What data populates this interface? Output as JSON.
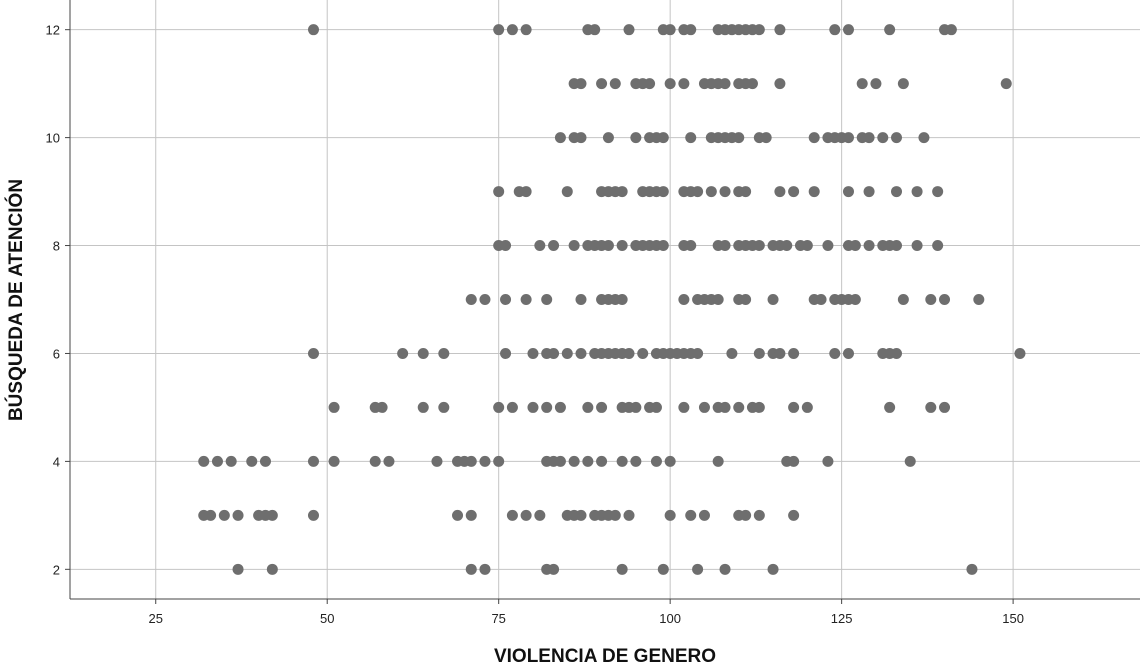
{
  "chart_data": {
    "type": "scatter",
    "xlabel": "VIOLENCIA DE GENERO",
    "ylabel": "BÚSQUEDA DE ATENCIÓN",
    "xlim": [
      12.5,
      168.5
    ],
    "ylim": [
      1.45,
      12.55
    ],
    "x_ticks": [
      25,
      50,
      75,
      100,
      125,
      150
    ],
    "y_ticks": [
      2,
      4,
      6,
      8,
      10,
      12
    ],
    "grid": true,
    "marker_color": "#6e6e6e",
    "grid_color": "#c4c4c4",
    "series": [
      {
        "points": [
          [
            48,
            12
          ],
          [
            75,
            12
          ],
          [
            77,
            12
          ],
          [
            79,
            12
          ],
          [
            88,
            12
          ],
          [
            89,
            12
          ],
          [
            94,
            12
          ],
          [
            99,
            12
          ],
          [
            100,
            12
          ],
          [
            102,
            12
          ],
          [
            103,
            12
          ],
          [
            107,
            12
          ],
          [
            108,
            12
          ],
          [
            109,
            12
          ],
          [
            110,
            12
          ],
          [
            111,
            12
          ],
          [
            112,
            12
          ],
          [
            113,
            12
          ],
          [
            116,
            12
          ],
          [
            124,
            12
          ],
          [
            126,
            12
          ],
          [
            132,
            12
          ],
          [
            140,
            12
          ],
          [
            141,
            12
          ],
          [
            86,
            11
          ],
          [
            87,
            11
          ],
          [
            90,
            11
          ],
          [
            92,
            11
          ],
          [
            95,
            11
          ],
          [
            96,
            11
          ],
          [
            97,
            11
          ],
          [
            100,
            11
          ],
          [
            102,
            11
          ],
          [
            105,
            11
          ],
          [
            106,
            11
          ],
          [
            107,
            11
          ],
          [
            108,
            11
          ],
          [
            110,
            11
          ],
          [
            111,
            11
          ],
          [
            112,
            11
          ],
          [
            116,
            11
          ],
          [
            128,
            11
          ],
          [
            130,
            11
          ],
          [
            134,
            11
          ],
          [
            149,
            11
          ],
          [
            84,
            10
          ],
          [
            86,
            10
          ],
          [
            87,
            10
          ],
          [
            91,
            10
          ],
          [
            95,
            10
          ],
          [
            97,
            10
          ],
          [
            98,
            10
          ],
          [
            99,
            10
          ],
          [
            103,
            10
          ],
          [
            106,
            10
          ],
          [
            107,
            10
          ],
          [
            108,
            10
          ],
          [
            109,
            10
          ],
          [
            110,
            10
          ],
          [
            113,
            10
          ],
          [
            114,
            10
          ],
          [
            121,
            10
          ],
          [
            123,
            10
          ],
          [
            124,
            10
          ],
          [
            125,
            10
          ],
          [
            126,
            10
          ],
          [
            128,
            10
          ],
          [
            129,
            10
          ],
          [
            131,
            10
          ],
          [
            133,
            10
          ],
          [
            137,
            10
          ],
          [
            75,
            9
          ],
          [
            78,
            9
          ],
          [
            79,
            9
          ],
          [
            85,
            9
          ],
          [
            90,
            9
          ],
          [
            91,
            9
          ],
          [
            92,
            9
          ],
          [
            93,
            9
          ],
          [
            96,
            9
          ],
          [
            97,
            9
          ],
          [
            98,
            9
          ],
          [
            99,
            9
          ],
          [
            102,
            9
          ],
          [
            103,
            9
          ],
          [
            104,
            9
          ],
          [
            106,
            9
          ],
          [
            108,
            9
          ],
          [
            110,
            9
          ],
          [
            111,
            9
          ],
          [
            116,
            9
          ],
          [
            118,
            9
          ],
          [
            121,
            9
          ],
          [
            126,
            9
          ],
          [
            129,
            9
          ],
          [
            133,
            9
          ],
          [
            136,
            9
          ],
          [
            139,
            9
          ],
          [
            75,
            8
          ],
          [
            76,
            8
          ],
          [
            81,
            8
          ],
          [
            83,
            8
          ],
          [
            86,
            8
          ],
          [
            88,
            8
          ],
          [
            89,
            8
          ],
          [
            90,
            8
          ],
          [
            91,
            8
          ],
          [
            93,
            8
          ],
          [
            95,
            8
          ],
          [
            96,
            8
          ],
          [
            97,
            8
          ],
          [
            98,
            8
          ],
          [
            99,
            8
          ],
          [
            102,
            8
          ],
          [
            103,
            8
          ],
          [
            107,
            8
          ],
          [
            108,
            8
          ],
          [
            110,
            8
          ],
          [
            111,
            8
          ],
          [
            112,
            8
          ],
          [
            113,
            8
          ],
          [
            115,
            8
          ],
          [
            116,
            8
          ],
          [
            117,
            8
          ],
          [
            119,
            8
          ],
          [
            120,
            8
          ],
          [
            123,
            8
          ],
          [
            126,
            8
          ],
          [
            127,
            8
          ],
          [
            129,
            8
          ],
          [
            131,
            8
          ],
          [
            132,
            8
          ],
          [
            133,
            8
          ],
          [
            136,
            8
          ],
          [
            139,
            8
          ],
          [
            71,
            7
          ],
          [
            73,
            7
          ],
          [
            76,
            7
          ],
          [
            79,
            7
          ],
          [
            82,
            7
          ],
          [
            87,
            7
          ],
          [
            90,
            7
          ],
          [
            91,
            7
          ],
          [
            92,
            7
          ],
          [
            93,
            7
          ],
          [
            102,
            7
          ],
          [
            104,
            7
          ],
          [
            105,
            7
          ],
          [
            106,
            7
          ],
          [
            107,
            7
          ],
          [
            110,
            7
          ],
          [
            111,
            7
          ],
          [
            115,
            7
          ],
          [
            121,
            7
          ],
          [
            122,
            7
          ],
          [
            124,
            7
          ],
          [
            125,
            7
          ],
          [
            126,
            7
          ],
          [
            127,
            7
          ],
          [
            134,
            7
          ],
          [
            138,
            7
          ],
          [
            140,
            7
          ],
          [
            145,
            7
          ],
          [
            48,
            6
          ],
          [
            61,
            6
          ],
          [
            64,
            6
          ],
          [
            67,
            6
          ],
          [
            76,
            6
          ],
          [
            80,
            6
          ],
          [
            82,
            6
          ],
          [
            83,
            6
          ],
          [
            85,
            6
          ],
          [
            87,
            6
          ],
          [
            89,
            6
          ],
          [
            90,
            6
          ],
          [
            91,
            6
          ],
          [
            92,
            6
          ],
          [
            93,
            6
          ],
          [
            94,
            6
          ],
          [
            96,
            6
          ],
          [
            98,
            6
          ],
          [
            99,
            6
          ],
          [
            100,
            6
          ],
          [
            101,
            6
          ],
          [
            102,
            6
          ],
          [
            103,
            6
          ],
          [
            104,
            6
          ],
          [
            109,
            6
          ],
          [
            113,
            6
          ],
          [
            115,
            6
          ],
          [
            116,
            6
          ],
          [
            118,
            6
          ],
          [
            124,
            6
          ],
          [
            126,
            6
          ],
          [
            131,
            6
          ],
          [
            132,
            6
          ],
          [
            133,
            6
          ],
          [
            151,
            6
          ],
          [
            51,
            5
          ],
          [
            57,
            5
          ],
          [
            58,
            5
          ],
          [
            64,
            5
          ],
          [
            67,
            5
          ],
          [
            75,
            5
          ],
          [
            77,
            5
          ],
          [
            80,
            5
          ],
          [
            82,
            5
          ],
          [
            84,
            5
          ],
          [
            88,
            5
          ],
          [
            90,
            5
          ],
          [
            93,
            5
          ],
          [
            94,
            5
          ],
          [
            95,
            5
          ],
          [
            97,
            5
          ],
          [
            98,
            5
          ],
          [
            102,
            5
          ],
          [
            105,
            5
          ],
          [
            107,
            5
          ],
          [
            108,
            5
          ],
          [
            110,
            5
          ],
          [
            112,
            5
          ],
          [
            113,
            5
          ],
          [
            118,
            5
          ],
          [
            120,
            5
          ],
          [
            132,
            5
          ],
          [
            138,
            5
          ],
          [
            140,
            5
          ],
          [
            32,
            4
          ],
          [
            34,
            4
          ],
          [
            36,
            4
          ],
          [
            39,
            4
          ],
          [
            41,
            4
          ],
          [
            48,
            4
          ],
          [
            51,
            4
          ],
          [
            57,
            4
          ],
          [
            59,
            4
          ],
          [
            66,
            4
          ],
          [
            69,
            4
          ],
          [
            70,
            4
          ],
          [
            71,
            4
          ],
          [
            73,
            4
          ],
          [
            75,
            4
          ],
          [
            82,
            4
          ],
          [
            83,
            4
          ],
          [
            84,
            4
          ],
          [
            86,
            4
          ],
          [
            88,
            4
          ],
          [
            90,
            4
          ],
          [
            93,
            4
          ],
          [
            95,
            4
          ],
          [
            98,
            4
          ],
          [
            100,
            4
          ],
          [
            107,
            4
          ],
          [
            117,
            4
          ],
          [
            118,
            4
          ],
          [
            123,
            4
          ],
          [
            135,
            4
          ],
          [
            32,
            3
          ],
          [
            33,
            3
          ],
          [
            35,
            3
          ],
          [
            37,
            3
          ],
          [
            40,
            3
          ],
          [
            41,
            3
          ],
          [
            42,
            3
          ],
          [
            48,
            3
          ],
          [
            69,
            3
          ],
          [
            71,
            3
          ],
          [
            77,
            3
          ],
          [
            79,
            3
          ],
          [
            81,
            3
          ],
          [
            85,
            3
          ],
          [
            86,
            3
          ],
          [
            87,
            3
          ],
          [
            89,
            3
          ],
          [
            90,
            3
          ],
          [
            91,
            3
          ],
          [
            92,
            3
          ],
          [
            94,
            3
          ],
          [
            100,
            3
          ],
          [
            103,
            3
          ],
          [
            105,
            3
          ],
          [
            110,
            3
          ],
          [
            111,
            3
          ],
          [
            113,
            3
          ],
          [
            118,
            3
          ],
          [
            37,
            2
          ],
          [
            42,
            2
          ],
          [
            71,
            2
          ],
          [
            73,
            2
          ],
          [
            82,
            2
          ],
          [
            83,
            2
          ],
          [
            93,
            2
          ],
          [
            99,
            2
          ],
          [
            104,
            2
          ],
          [
            108,
            2
          ],
          [
            115,
            2
          ],
          [
            144,
            2
          ]
        ]
      }
    ]
  }
}
